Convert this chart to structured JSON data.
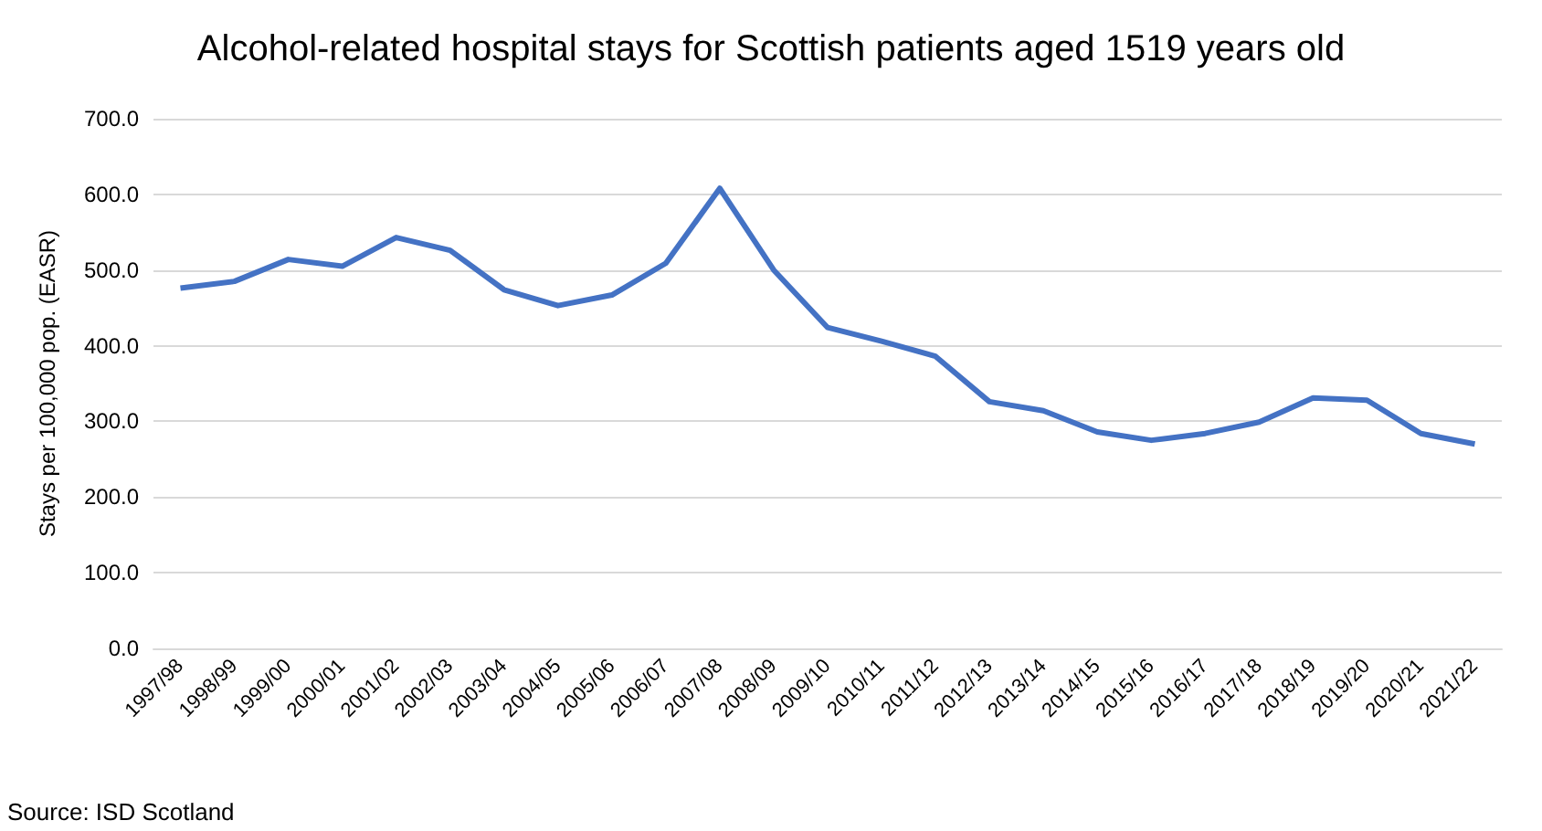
{
  "chart_data": {
    "type": "line",
    "title": "Alcohol-related hospital stays for Scottish patients aged 1519 years old",
    "ylabel": "Stays per 100,000 pop. (EASR)",
    "categories": [
      "1997/98",
      "1998/99",
      "1999/00",
      "2000/01",
      "2001/02",
      "2002/03",
      "2003/04",
      "2004/05",
      "2005/06",
      "2006/07",
      "2007/08",
      "2008/09",
      "2009/10",
      "2010/11",
      "2011/12",
      "2012/13",
      "2013/14",
      "2014/15",
      "2015/16",
      "2016/17",
      "2017/18",
      "2018/19",
      "2019/20",
      "2020/21",
      "2021/22"
    ],
    "series": [
      {
        "color": "#4472c4",
        "values": [
          476,
          485,
          514,
          505,
          543,
          526,
          474,
          453,
          467,
          509,
          608,
          500,
          424,
          406,
          386,
          326,
          314,
          286,
          275,
          284,
          299,
          331,
          328,
          284,
          270
        ]
      }
    ],
    "ylim": [
      0,
      700
    ],
    "yticks": [
      {
        "value": 0,
        "label": "0.0"
      },
      {
        "value": 100,
        "label": "100.0"
      },
      {
        "value": 200,
        "label": "200.0"
      },
      {
        "value": 300,
        "label": "300.0"
      },
      {
        "value": 400,
        "label": "400.0"
      },
      {
        "value": 500,
        "label": "500.0"
      },
      {
        "value": 600,
        "label": "600.0"
      },
      {
        "value": 700,
        "label": "700.0"
      }
    ],
    "grid": "y",
    "marker": "none",
    "line_style": "solid",
    "annotations": [
      "Source: ISD Scotland"
    ]
  }
}
